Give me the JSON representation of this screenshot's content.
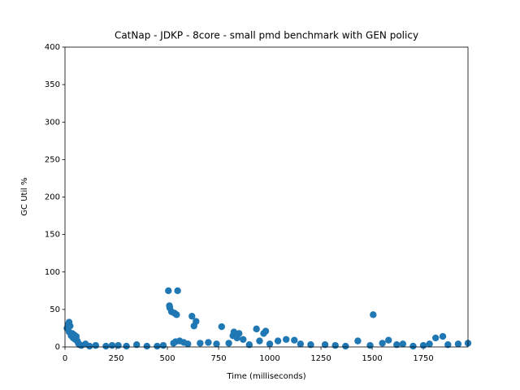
{
  "chart_data": {
    "type": "scatter",
    "title": "CatNap - JDKP - 8core -  small pmd benchmark with GEN policy",
    "x_label": "Time (milliseconds)",
    "y_label": "GC Util %",
    "xlim": [
      0,
      1968
    ],
    "ylim": [
      0,
      400
    ],
    "xticks": [
      0,
      250,
      500,
      750,
      1000,
      1250,
      1500,
      1750
    ],
    "yticks": [
      0,
      50,
      100,
      150,
      200,
      250,
      300,
      350,
      400
    ],
    "series": [
      {
        "color": "#1f77b4",
        "x": [
          10,
          15,
          20,
          25,
          20,
          30,
          35,
          40,
          45,
          50,
          55,
          60,
          65,
          70,
          80,
          100,
          120,
          150,
          200,
          230,
          260,
          300,
          350,
          400,
          450,
          480,
          505,
          510,
          512,
          520,
          535,
          545,
          550,
          530,
          540,
          560,
          580,
          600,
          620,
          630,
          640,
          660,
          700,
          740,
          765,
          800,
          820,
          825,
          840,
          850,
          870,
          900,
          935,
          950,
          970,
          980,
          1000,
          1040,
          1080,
          1120,
          1150,
          1200,
          1270,
          1320,
          1370,
          1430,
          1490,
          1505,
          1550,
          1580,
          1620,
          1650,
          1700,
          1750,
          1780,
          1810,
          1845,
          1870,
          1920,
          1968
        ],
        "values": [
          25,
          30,
          33,
          28,
          20,
          15,
          18,
          12,
          16,
          10,
          14,
          8,
          5,
          3,
          2,
          4,
          1,
          2,
          1,
          2,
          2,
          1,
          3,
          1,
          1,
          2,
          75,
          55,
          52,
          47,
          45,
          43,
          75,
          5,
          7,
          8,
          6,
          4,
          41,
          28,
          34,
          5,
          6,
          4,
          27,
          5,
          15,
          20,
          12,
          18,
          10,
          3,
          24,
          8,
          18,
          21,
          4,
          8,
          10,
          9,
          4,
          3,
          3,
          2,
          1,
          8,
          2,
          43,
          5,
          9,
          3,
          4,
          1,
          2,
          4,
          12,
          14,
          3,
          4,
          5
        ]
      }
    ]
  }
}
